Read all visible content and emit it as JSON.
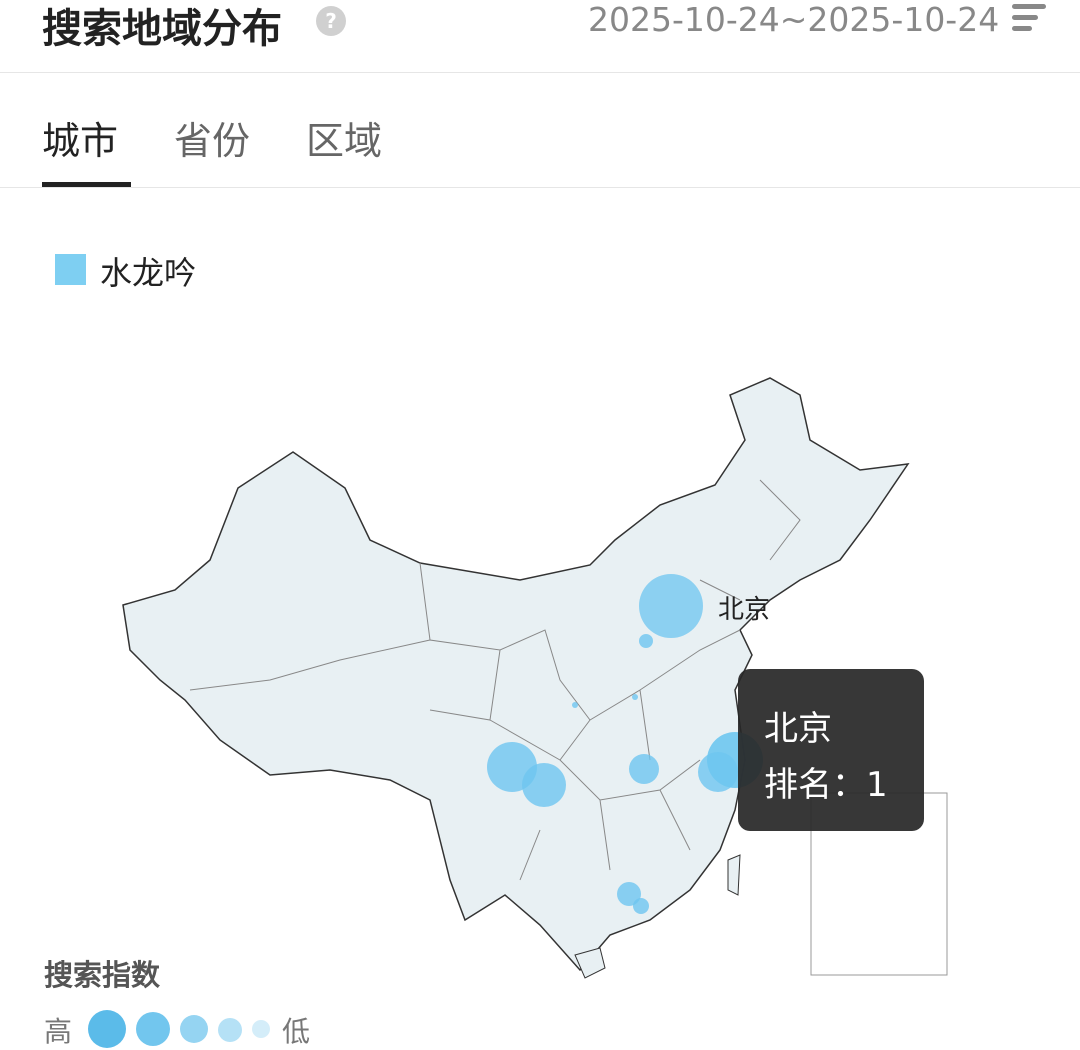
{
  "header": {
    "title": "搜索地域分布",
    "help_icon": "question-circle-icon",
    "date_range": "2025-10-24~2025-10-24",
    "menu_icon": "sort-lines-icon"
  },
  "tabs": [
    {
      "label": "城市",
      "active": true
    },
    {
      "label": "省份",
      "active": false
    },
    {
      "label": "区域",
      "active": false
    }
  ],
  "legend": {
    "series": "水龙吟",
    "color": "#7ecff2"
  },
  "map": {
    "city_label": "北京",
    "tooltip": {
      "city": "北京",
      "rank_text": "排名：1"
    },
    "bubble_color": "#6ec6f0",
    "bubbles_rank_order": [
      1,
      2,
      3,
      4,
      5,
      6,
      7,
      8,
      9,
      10,
      11
    ]
  },
  "scale": {
    "title": "搜索指数",
    "high": "高",
    "low": "低"
  }
}
